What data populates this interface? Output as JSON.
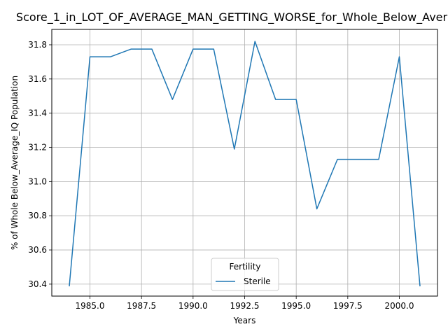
{
  "chart_data": {
    "type": "line",
    "title": "Score_1_in_LOT_OF_AVERAGE_MAN_GETTING_WORSE_for_Whole_Below_Aver",
    "xlabel": "Years",
    "ylabel": "% of Whole Below_Average_IQ Population",
    "xlim": [
      1983.15,
      2001.85
    ],
    "ylim": [
      30.33,
      31.89
    ],
    "xticks": [
      1985.0,
      1987.5,
      1990.0,
      1992.5,
      1995.0,
      1997.5,
      2000.0
    ],
    "xtick_labels": [
      "1985.0",
      "1987.5",
      "1990.0",
      "1992.5",
      "1995.0",
      "1997.5",
      "2000.0"
    ],
    "yticks": [
      30.4,
      30.6,
      30.8,
      31.0,
      31.2,
      31.4,
      31.6,
      31.8
    ],
    "ytick_labels": [
      "30.4",
      "30.6",
      "30.8",
      "31.0",
      "31.2",
      "31.4",
      "31.6",
      "31.8"
    ],
    "grid": true,
    "legend": {
      "title": "Fertility",
      "placement": "bottom-center"
    },
    "colors": {
      "series": "#1f77b4",
      "grid": "#b0b0b0",
      "axes": "#000000"
    },
    "series": [
      {
        "name": "Sterile",
        "x": [
          1984,
          1985,
          1986,
          1987,
          1988,
          1989,
          1990,
          1991,
          1992,
          1993,
          1994,
          1995,
          1996,
          1997,
          1998,
          1999,
          2000,
          2001
        ],
        "y": [
          30.39,
          31.73,
          31.73,
          31.775,
          31.775,
          31.48,
          31.775,
          31.775,
          31.19,
          31.82,
          31.48,
          31.48,
          30.84,
          31.13,
          31.13,
          31.13,
          31.73,
          30.39
        ]
      }
    ]
  }
}
